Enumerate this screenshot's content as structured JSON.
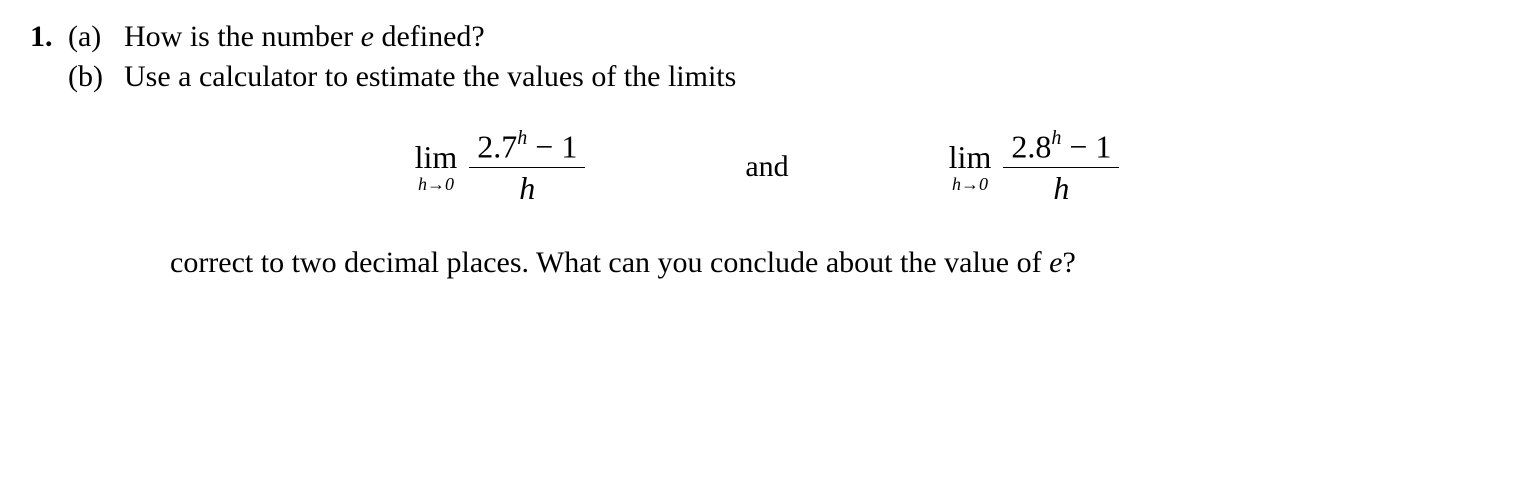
{
  "problem": {
    "number": "1.",
    "part_a": {
      "label": "(a)",
      "text_before_e": "How is the number ",
      "e_symbol": "e",
      "text_after_e": " defined?"
    },
    "part_b": {
      "label": "(b)",
      "intro": "Use a calculator to estimate the values of the limits",
      "limit1": {
        "lim_label": "lim",
        "h_arrow": "h→0",
        "base": "2.7",
        "exponent": "h",
        "minus_one": " − 1",
        "denominator": "h"
      },
      "and_word": "and",
      "limit2": {
        "lim_label": "lim",
        "h_arrow": "h→0",
        "base": "2.8",
        "exponent": "h",
        "minus_one": " − 1",
        "denominator": "h"
      },
      "conclusion_before_e": "correct to two decimal places. What can you conclude about the value of ",
      "e_symbol": "e",
      "question_mark": "?"
    }
  },
  "style": {
    "background_color": "#ffffff",
    "text_color": "#000000",
    "font_family": "Georgia, Times New Roman, serif",
    "base_fontsize": 30,
    "math_fontsize": 32,
    "superscript_fontsize": 20,
    "subscript_fontsize": 18,
    "border_color": "#000000"
  }
}
